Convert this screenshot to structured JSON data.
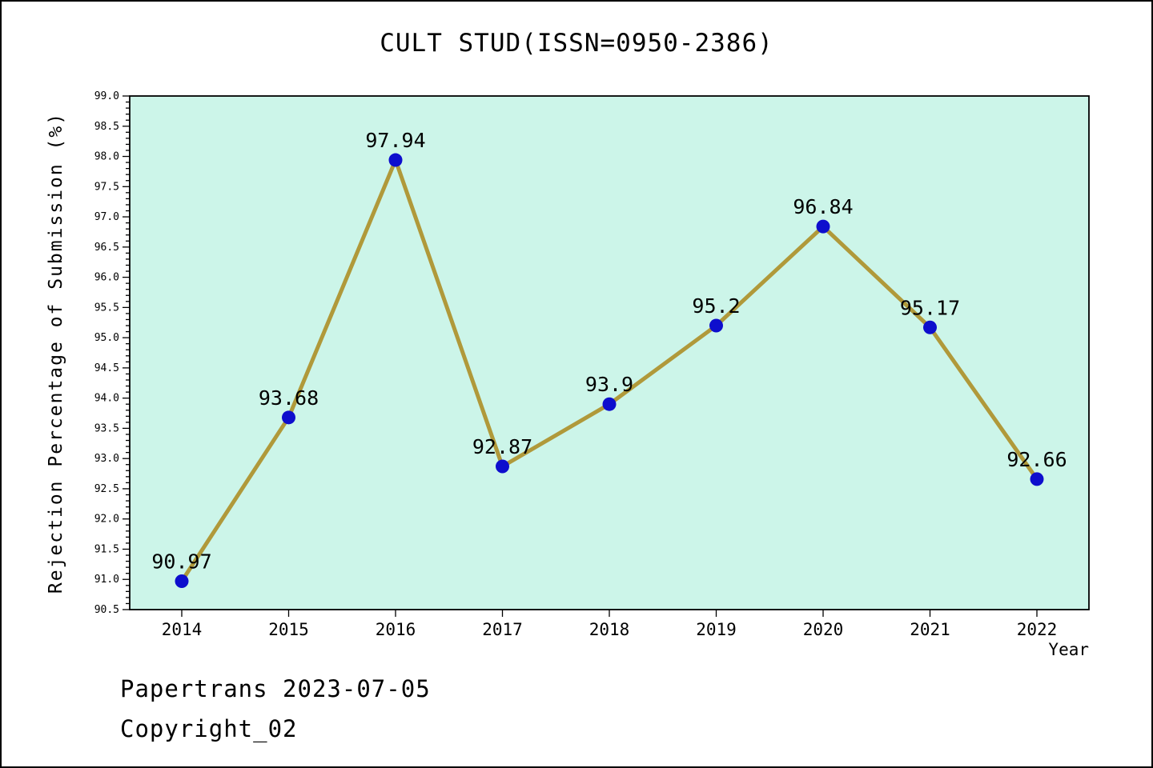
{
  "page": {
    "title": "CULT STUD(ISSN=0950-2386)"
  },
  "footer": {
    "line1": "Papertrans 2023-07-05",
    "line2": "Copyright_02"
  },
  "chart_data": {
    "type": "line",
    "title": "CULT STUD(ISSN=0950-2386)",
    "xlabel": "Year",
    "ylabel": "Rejection Percentage of Submission (%)",
    "categories": [
      "2014",
      "2015",
      "2016",
      "2017",
      "2018",
      "2019",
      "2020",
      "2021",
      "2022"
    ],
    "values": [
      90.97,
      93.68,
      97.94,
      92.87,
      93.9,
      95.2,
      96.84,
      95.17,
      92.66
    ],
    "point_labels": [
      "90.97",
      "93.68",
      "97.94",
      "92.87",
      "93.9",
      "95.2",
      "96.84",
      "95.17",
      "92.66"
    ],
    "ylim": [
      90.5,
      99.0
    ],
    "ytick_major": 0.5,
    "ytick_minor": 0.1,
    "grid": false,
    "legend": false,
    "colors": {
      "plot_bg": "#ccf5e9",
      "line": "#b0993a",
      "marker": "#0e0ecd",
      "axis": "#000000",
      "text": "#000000"
    }
  }
}
